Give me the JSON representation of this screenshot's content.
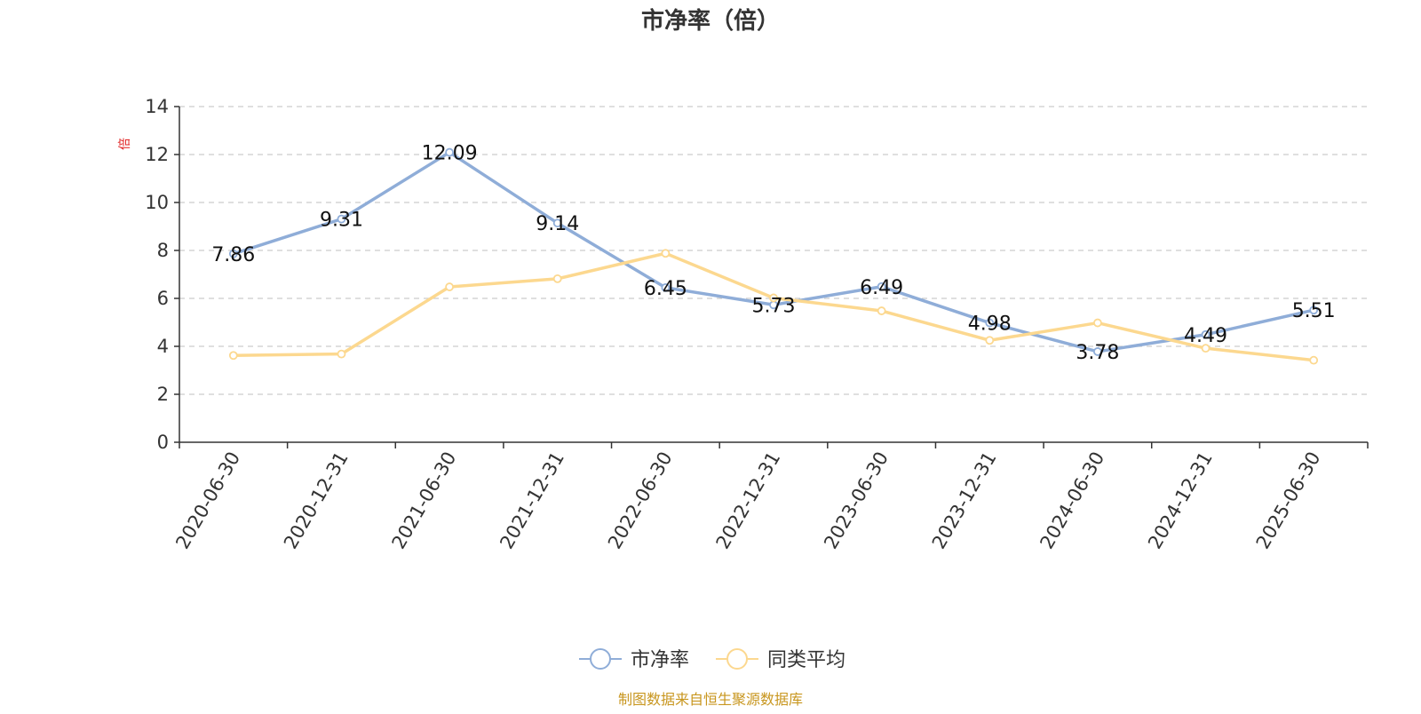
{
  "chart_data": {
    "type": "line",
    "title": "市净率（倍）",
    "ylabel": "倍",
    "xlabel": "",
    "categories": [
      "2020-06-30",
      "2020-12-31",
      "2021-06-30",
      "2021-12-31",
      "2022-06-30",
      "2022-12-31",
      "2023-06-30",
      "2023-12-31",
      "2024-06-30",
      "2024-12-31",
      "2025-06-30"
    ],
    "ylim": [
      0,
      14
    ],
    "yticks": [
      0,
      2,
      4,
      6,
      8,
      10,
      12,
      14
    ],
    "grid": true,
    "legend_position": "bottom-center",
    "series": [
      {
        "name": "市净率",
        "color": "#8fadd8",
        "values": [
          7.86,
          9.31,
          12.09,
          9.14,
          6.45,
          5.73,
          6.49,
          4.98,
          3.78,
          4.49,
          5.51
        ],
        "labels": [
          "7.86",
          "9.31",
          "12.09",
          "9.14",
          "6.45",
          "5.73",
          "6.49",
          "4.98",
          "3.78",
          "4.49",
          "5.51"
        ]
      },
      {
        "name": "同类平均",
        "color": "#fcd88f",
        "values": [
          3.62,
          3.68,
          6.48,
          6.82,
          7.88,
          6.02,
          5.48,
          4.25,
          4.98,
          3.92,
          3.42
        ]
      }
    ],
    "source": "制图数据来自恒生聚源数据库",
    "unit_color": "#e02020",
    "source_color": "#c8961e",
    "axis_color": "#333333",
    "grid_color": "#cccccc"
  }
}
